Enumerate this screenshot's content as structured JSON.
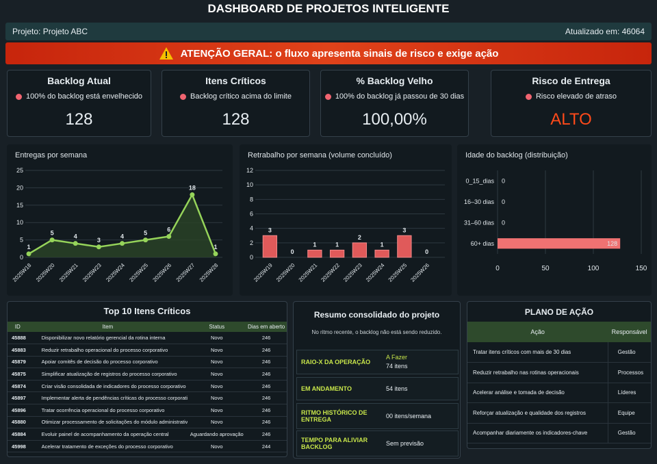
{
  "header": {
    "title": "DASHBOARD DE PROJETOS INTELIGENTE",
    "project": "Projeto: Projeto ABC",
    "updated": "Atualizado em: 46064"
  },
  "alert": "ATENÇÃO GERAL: o fluxo apresenta sinais de risco e exige ação",
  "kpis": [
    {
      "title": "Backlog Atual",
      "note": "100% do backlog está envelhecido",
      "value": "128"
    },
    {
      "title": "Itens Críticos",
      "note": "Backlog crítico acima do limite",
      "value": "128"
    },
    {
      "title": "% Backlog Velho",
      "note": "100% do backlog já passou de 30 dias",
      "value": "100,00%"
    },
    {
      "title": "Risco de Entrega",
      "note": "Risco elevado de atraso",
      "value": "ALTO",
      "color": "#ff4a1a"
    }
  ],
  "chart_data": [
    {
      "type": "line",
      "title": "Entregas por semana",
      "categories": [
        "2025W18",
        "2025W20",
        "2025W21",
        "2025W23",
        "2025W24",
        "2025W25",
        "2025W26",
        "2025W27",
        "2025W28"
      ],
      "values": [
        1,
        5,
        4,
        3,
        4,
        5,
        6,
        18,
        1
      ],
      "color": "#96d45a",
      "ylim": [
        0,
        25
      ],
      "yticks": [
        0,
        5,
        10,
        15,
        20,
        25
      ],
      "grid": true
    },
    {
      "type": "bar",
      "title": "Retrabalho por semana (volume concluído)",
      "categories": [
        "2025W19",
        "2025W20",
        "2025W21",
        "2025W22",
        "2025W23",
        "2025W24",
        "2025W25",
        "2025W26"
      ],
      "values": [
        3,
        0,
        1,
        1,
        2,
        1,
        3,
        0
      ],
      "color": "#e05a5a",
      "ylim": [
        0,
        12
      ],
      "yticks": [
        0,
        2,
        4,
        6,
        8,
        10,
        12
      ],
      "grid": true
    },
    {
      "type": "hbar",
      "title": "Idade do backlog (distribuição)",
      "categories": [
        "0_15_dias",
        "16–30 dias",
        "31–60 dias",
        "60+ dias"
      ],
      "values": [
        0,
        0,
        0,
        128
      ],
      "color": "#f07272",
      "xlim": [
        0,
        150
      ],
      "xticks": [
        0,
        50,
        100,
        150
      ],
      "grid": true
    }
  ],
  "top10": {
    "title": "Top 10 Itens Críticos",
    "columns": [
      "ID",
      "Item",
      "Status",
      "Dias em aberto"
    ],
    "rows": [
      [
        "45888",
        "Disponibilizar novo relatório gerencial da rotina interna",
        "Novo",
        "246"
      ],
      [
        "45883",
        "Reduzir retrabalho operacional do processo corporativo",
        "Novo",
        "246"
      ],
      [
        "45879",
        "Apoiar comitês de decisão do processo corporativo",
        "Novo",
        "246"
      ],
      [
        "45875",
        "Simplificar atualização de registros do processo corporativo",
        "Novo",
        "246"
      ],
      [
        "45874",
        "Criar visão consolidada de indicadores do processo corporativo",
        "Novo",
        "246"
      ],
      [
        "45897",
        "Implementar alerta de pendências críticas do processo corporativo",
        "Novo",
        "246"
      ],
      [
        "45896",
        "Tratar ocorrência operacional do processo corporativo",
        "Novo",
        "246"
      ],
      [
        "45880",
        "Otimizar processamento de solicitações do módulo administrativo",
        "Novo",
        "246"
      ],
      [
        "45884",
        "Evoluir painel de acompanhamento da operação central",
        "Aguardando aprovação",
        "246"
      ],
      [
        "45998",
        "Acelerar tratamento de exceções do processo corporativo",
        "Novo",
        "244"
      ]
    ]
  },
  "summary": {
    "title": "Resumo consolidado do projeto",
    "note": "No ritmo recente, o backlog não está sendo reduzido.",
    "rows": [
      {
        "label": "RAIO-X DA OPERAÇÃO",
        "value": [
          "A Fazer",
          "74 itens"
        ]
      },
      {
        "label": "EM ANDAMENTO",
        "value": [
          "54 itens"
        ]
      },
      {
        "label": "RITMO HISTÓRICO DE ENTREGA",
        "value": [
          "00 itens/semana"
        ]
      },
      {
        "label": "TEMPO PARA ALIVIAR BACKLOG",
        "value": [
          "Sem previsão"
        ]
      }
    ]
  },
  "plan": {
    "title": "PLANO DE AÇÃO",
    "columns": [
      "Ação",
      "Responsável"
    ],
    "rows": [
      [
        "Tratar itens críticos com mais de 30 dias",
        "Gestão"
      ],
      [
        "Reduzir retrabalho nas rotinas operacionais",
        "Processos"
      ],
      [
        "Acelerar análise e tomada de decisão",
        "Líderes"
      ],
      [
        "Reforçar atualização e qualidade dos registros",
        "Equipe"
      ],
      [
        "Acompanhar diariamente os indicadores-chave",
        "Gestão"
      ]
    ]
  }
}
